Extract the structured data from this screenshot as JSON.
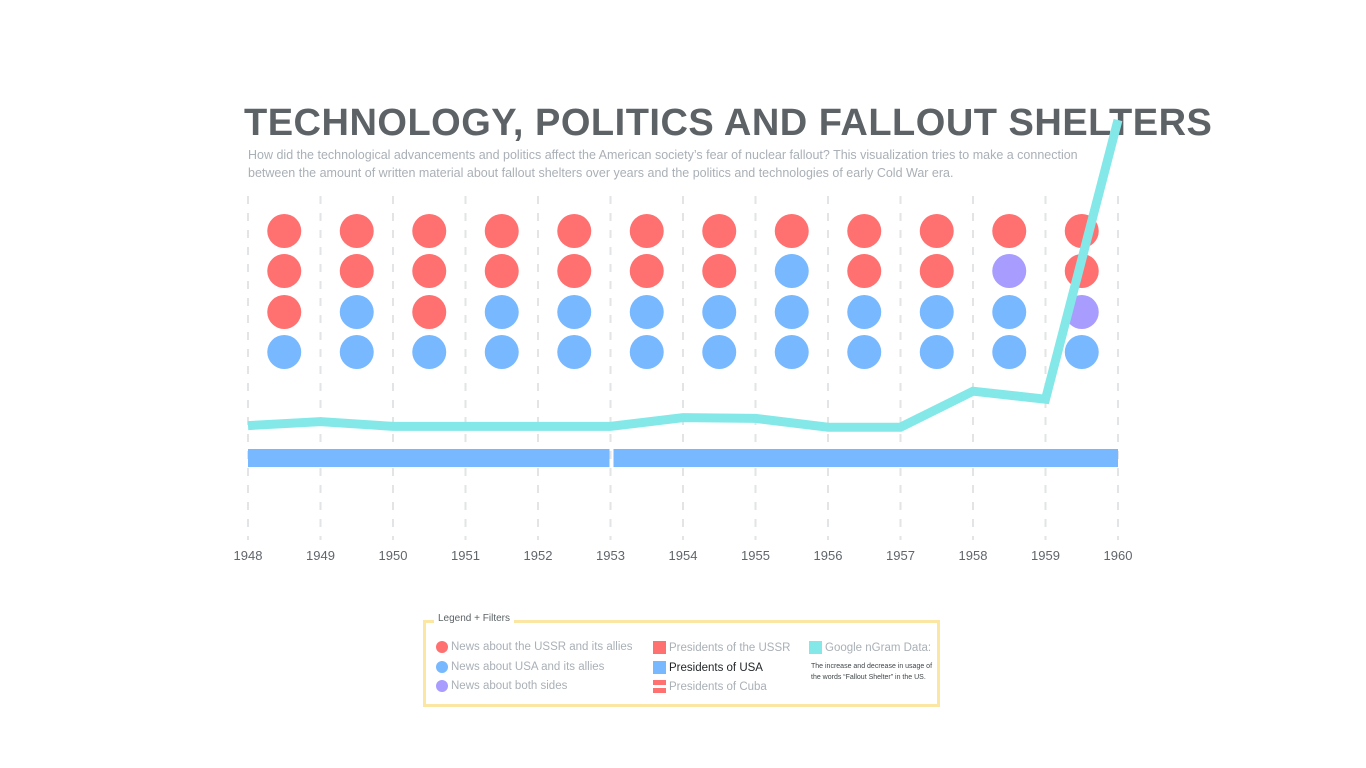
{
  "header": {
    "title": "TECHNOLOGY, POLITICS AND FALLOUT SHELTERS",
    "subtitle": "How did the technological advancements and politics affect the American society’s fear of nuclear fallout? This visualization tries to make a connection between the amount of written material about fallout shelters over years and the politics and technologies of early Cold War era."
  },
  "colors": {
    "ussr": "#ff7070",
    "usa": "#78b8ff",
    "both": "#a89cff",
    "ngram": "#84e8e8",
    "grid": "#e2e4e6"
  },
  "chart_data": {
    "type": "line",
    "x_ticks": [
      "1948",
      "1949",
      "1950",
      "1951",
      "1952",
      "1953",
      "1954",
      "1955",
      "1956",
      "1957",
      "1958",
      "1959",
      "1960"
    ],
    "ngram_series": {
      "x": [
        1948,
        1949,
        1950,
        1951,
        1952,
        1953,
        1954,
        1955,
        1956,
        1957,
        1958,
        1959,
        1960
      ],
      "values": [
        0.9,
        1.15,
        0.85,
        0.85,
        0.85,
        0.85,
        1.4,
        1.35,
        0.8,
        0.8,
        3.05,
        2.55,
        20
      ]
    },
    "news_dots": [
      [
        "ussr",
        "ussr",
        "ussr",
        "usa"
      ],
      [
        "ussr",
        "ussr",
        "usa",
        "usa"
      ],
      [
        "ussr",
        "ussr",
        "ussr",
        "usa"
      ],
      [
        "ussr",
        "ussr",
        "usa",
        "usa"
      ],
      [
        "ussr",
        "ussr",
        "usa",
        "usa"
      ],
      [
        "ussr",
        "ussr",
        "usa",
        "usa"
      ],
      [
        "ussr",
        "ussr",
        "usa",
        "usa"
      ],
      [
        "ussr",
        "usa",
        "usa",
        "usa"
      ],
      [
        "ussr",
        "ussr",
        "usa",
        "usa"
      ],
      [
        "ussr",
        "ussr",
        "usa",
        "usa"
      ],
      [
        "ussr",
        "both",
        "usa",
        "usa"
      ],
      [
        "ussr",
        "ussr",
        "both",
        "usa"
      ]
    ],
    "usa_presidents": [
      {
        "start": 1948,
        "end": 1953
      },
      {
        "start": 1953,
        "end": 1960
      }
    ]
  },
  "legend": {
    "title": "Legend + Filters",
    "items": {
      "news_ussr": "News about the USSR and its allies",
      "news_usa": "News about USA and its allies",
      "news_both": "News about both sides",
      "pres_ussr": "Presidents of the USSR",
      "pres_usa": "Presidents of USA",
      "pres_cuba": "Presidents of Cuba",
      "ngram": "Google nGram Data:",
      "ngram_note": "The increase and decrease in usage of the words “Fallout Shelter” in the US."
    }
  }
}
